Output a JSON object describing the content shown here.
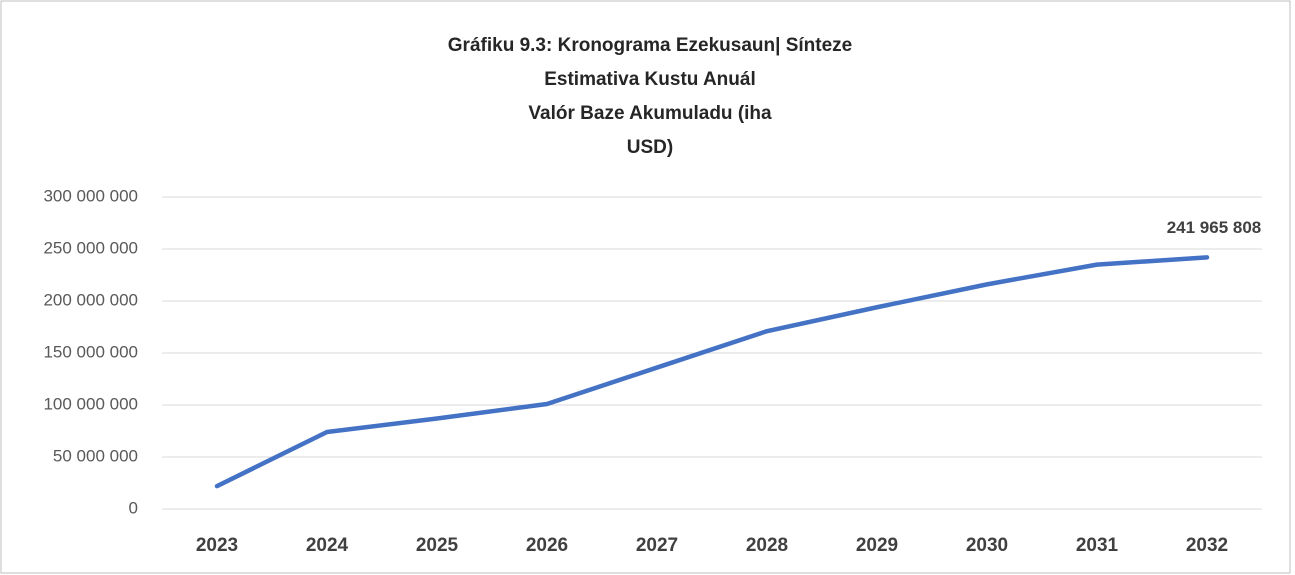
{
  "chart_data": {
    "type": "line",
    "title": [
      "Gráfiku 9.3: Kronograma Ezekusaun|  Sínteze",
      "Estimativa Kustu Anuál",
      "Valór Baze Akumuladu (iha",
      "USD)"
    ],
    "categories": [
      "2023",
      "2024",
      "2025",
      "2026",
      "2027",
      "2028",
      "2029",
      "2030",
      "2031",
      "2032"
    ],
    "series": [
      {
        "color": "#4472c4",
        "values": [
          22000000,
          74000000,
          87000000,
          101000000,
          136000000,
          171000000,
          194000000,
          216000000,
          235000000,
          241965808
        ],
        "value_labels": [
          null,
          null,
          null,
          null,
          null,
          null,
          null,
          null,
          null,
          "241 965 808"
        ]
      }
    ],
    "ylim": [
      0,
      300000000
    ],
    "yticks": [
      0,
      {
        "value": 50000000,
        "label": "50 000 000"
      },
      {
        "value": 100000000,
        "label": "100 000 000"
      },
      {
        "value": 150000000,
        "label": "150 000 000"
      },
      {
        "value": 200000000,
        "label": "200 000 000"
      },
      {
        "value": 250000000,
        "label": "250 000 000"
      },
      {
        "value": 300000000,
        "label": "300 000 000"
      }
    ],
    "grid": true
  }
}
